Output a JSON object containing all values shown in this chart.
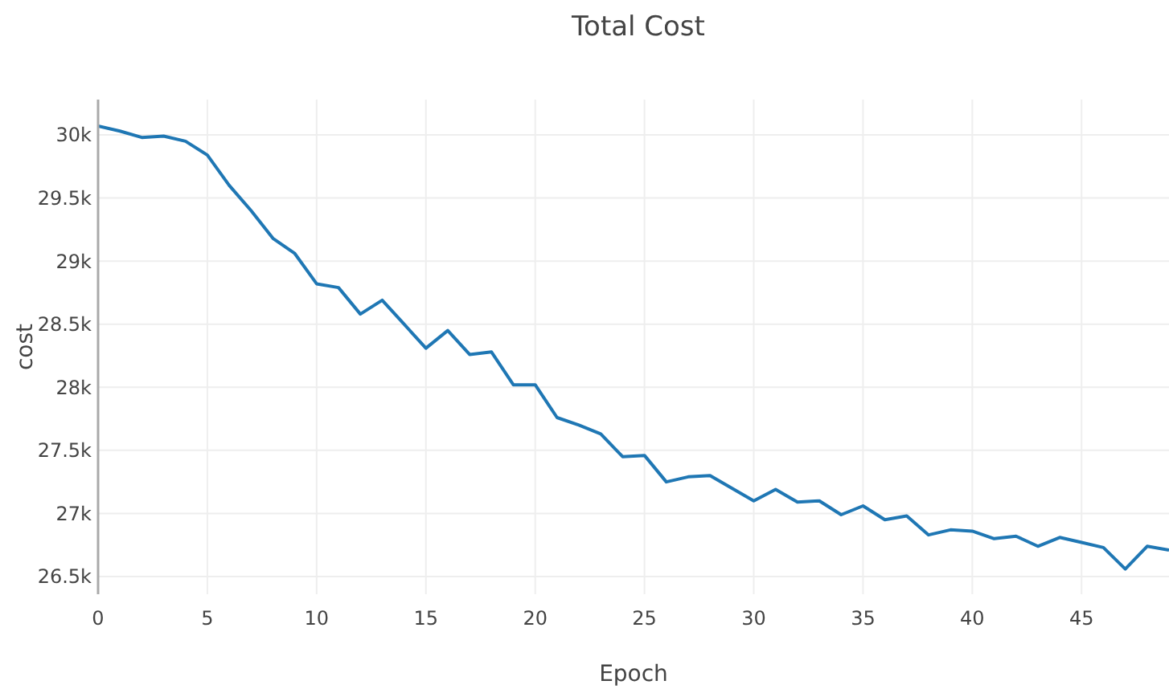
{
  "chart_data": {
    "type": "line",
    "title": "Total Cost",
    "xlabel": "Epoch",
    "ylabel": "cost",
    "x": [
      0,
      1,
      2,
      3,
      4,
      5,
      6,
      7,
      8,
      9,
      10,
      11,
      12,
      13,
      14,
      15,
      16,
      17,
      18,
      19,
      20,
      21,
      22,
      23,
      24,
      25,
      26,
      27,
      28,
      29,
      30,
      31,
      32,
      33,
      34,
      35,
      36,
      37,
      38,
      39,
      40,
      41,
      42,
      43,
      44,
      45,
      46,
      47,
      48,
      49
    ],
    "series": [
      {
        "color": "#1f77b4",
        "values": [
          30070,
          30030,
          29980,
          29990,
          29950,
          29840,
          29600,
          29400,
          29180,
          29060,
          28820,
          28790,
          28580,
          28690,
          28500,
          28310,
          28450,
          28260,
          28280,
          28020,
          28020,
          27760,
          27700,
          27630,
          27450,
          27460,
          27250,
          27290,
          27300,
          27200,
          27100,
          27190,
          27090,
          27100,
          26990,
          27060,
          26950,
          26980,
          26830,
          26870,
          26860,
          26800,
          26820,
          26740,
          26810,
          26770,
          26730,
          26560,
          26740,
          26710
        ]
      }
    ],
    "xlim": [
      0,
      49
    ],
    "xticks": [
      0,
      5,
      10,
      15,
      20,
      25,
      30,
      35,
      40,
      45
    ],
    "ylim": [
      26360,
      30280
    ],
    "yticks": [
      {
        "value": 26500,
        "label": "26.5k"
      },
      {
        "value": 27000,
        "label": "27k"
      },
      {
        "value": 27500,
        "label": "27.5k"
      },
      {
        "value": 28000,
        "label": "28k"
      },
      {
        "value": 28500,
        "label": "28.5k"
      },
      {
        "value": 29000,
        "label": "29k"
      },
      {
        "value": 29500,
        "label": "29.5k"
      },
      {
        "value": 30000,
        "label": "30k"
      }
    ],
    "grid": true,
    "marker": "none",
    "line_style": "solid"
  }
}
